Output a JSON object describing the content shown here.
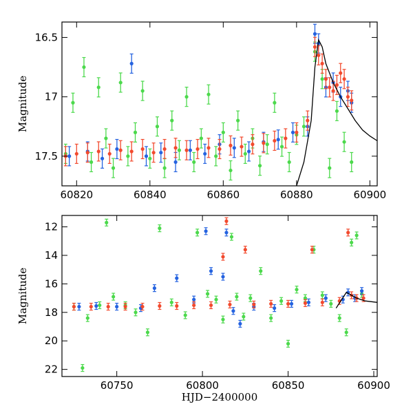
{
  "chart_data": [
    {
      "type": "scatter",
      "panel": "top",
      "title": "",
      "xlabel": "",
      "ylabel": "Magnitude",
      "xlim": [
        60816,
        60902
      ],
      "ylim": [
        17.75,
        16.37
      ],
      "y_inverted": true,
      "x_ticks": [
        60820,
        60840,
        60860,
        60880,
        60900
      ],
      "x_tick_labels": [
        "60820",
        "60840",
        "60860",
        "60880",
        "60900"
      ],
      "y_ticks": [
        16.5,
        17,
        17.5
      ],
      "y_tick_labels": [
        "16.5",
        "17",
        "17.5"
      ],
      "grid": false,
      "legend": "none",
      "series": [
        {
          "color": "#4cd94c",
          "points": [
            [
              60817,
              17.48
            ],
            [
              60819,
              17.05
            ],
            [
              60822,
              16.75
            ],
            [
              60824,
              17.55
            ],
            [
              60826,
              16.92
            ],
            [
              60828,
              17.35
            ],
            [
              60830,
              17.6
            ],
            [
              60832,
              16.88
            ],
            [
              60834,
              17.5
            ],
            [
              60836,
              17.3
            ],
            [
              60838,
              16.95
            ],
            [
              60840,
              17.52
            ],
            [
              60842,
              17.25
            ],
            [
              60844,
              17.6
            ],
            [
              60846,
              17.2
            ],
            [
              60848,
              17.45
            ],
            [
              60850,
              17.0
            ],
            [
              60852,
              17.55
            ],
            [
              60854,
              17.35
            ],
            [
              60856,
              16.98
            ],
            [
              60858,
              17.5
            ],
            [
              60860,
              17.3
            ],
            [
              60862,
              17.62
            ],
            [
              60864,
              17.2
            ],
            [
              60866,
              17.48
            ],
            [
              60868,
              17.35
            ],
            [
              60870,
              17.58
            ],
            [
              60872,
              17.4
            ],
            [
              60874,
              17.05
            ],
            [
              60876,
              17.42
            ],
            [
              60878,
              17.55
            ],
            [
              60880,
              17.32
            ],
            [
              60882,
              17.25
            ],
            [
              60885,
              16.62
            ],
            [
              60887,
              16.85
            ],
            [
              60889,
              17.6
            ],
            [
              60891,
              17.12
            ],
            [
              60893,
              17.38
            ],
            [
              60895,
              17.55
            ]
          ]
        },
        {
          "color": "#2563e0",
          "points": [
            [
              60818,
              17.5
            ],
            [
              60823,
              17.46
            ],
            [
              60827,
              17.52
            ],
            [
              60831,
              17.44
            ],
            [
              60835,
              16.72
            ],
            [
              60839,
              17.5
            ],
            [
              60843,
              17.47
            ],
            [
              60847,
              17.55
            ],
            [
              60851,
              17.45
            ],
            [
              60855,
              17.48
            ],
            [
              60859,
              17.4
            ],
            [
              60863,
              17.43
            ],
            [
              60867,
              17.46
            ],
            [
              60871,
              17.38
            ],
            [
              60875,
              17.36
            ],
            [
              60879,
              17.3
            ],
            [
              60883,
              17.25
            ],
            [
              60885,
              16.47
            ],
            [
              60886,
              16.55
            ],
            [
              60888,
              16.92
            ],
            [
              60890,
              16.88
            ],
            [
              60892,
              17.0
            ],
            [
              60894,
              16.95
            ],
            [
              60895,
              17.05
            ]
          ]
        },
        {
          "color": "#f24a2e",
          "points": [
            [
              60817,
              17.5
            ],
            [
              60820,
              17.48
            ],
            [
              60823,
              17.47
            ],
            [
              60826,
              17.46
            ],
            [
              60829,
              17.48
            ],
            [
              60832,
              17.45
            ],
            [
              60835,
              17.46
            ],
            [
              60838,
              17.44
            ],
            [
              60841,
              17.47
            ],
            [
              60844,
              17.44
            ],
            [
              60847,
              17.43
            ],
            [
              60850,
              17.45
            ],
            [
              60853,
              17.44
            ],
            [
              60856,
              17.43
            ],
            [
              60859,
              17.44
            ],
            [
              60862,
              17.41
            ],
            [
              60865,
              17.42
            ],
            [
              60868,
              17.4
            ],
            [
              60871,
              17.39
            ],
            [
              60874,
              17.37
            ],
            [
              60877,
              17.35
            ],
            [
              60880,
              17.3
            ],
            [
              60883,
              17.2
            ],
            [
              60885,
              16.58
            ],
            [
              60886,
              16.65
            ],
            [
              60887,
              16.72
            ],
            [
              60888,
              16.85
            ],
            [
              60889,
              16.92
            ],
            [
              60890,
              16.95
            ],
            [
              60891,
              16.9
            ],
            [
              60892,
              16.8
            ],
            [
              60893,
              16.85
            ],
            [
              60894,
              17.0
            ],
            [
              60895,
              17.03
            ]
          ]
        }
      ],
      "model_curve": {
        "color": "#000000",
        "points": [
          [
            60880,
            17.75
          ],
          [
            60882,
            17.55
          ],
          [
            60884,
            17.2
          ],
          [
            60885,
            16.75
          ],
          [
            60886,
            16.52
          ],
          [
            60887,
            16.58
          ],
          [
            60888,
            16.72
          ],
          [
            60890,
            16.88
          ],
          [
            60892,
            17.0
          ],
          [
            60894,
            17.1
          ],
          [
            60896,
            17.2
          ],
          [
            60898,
            17.28
          ],
          [
            60900,
            17.33
          ],
          [
            60902,
            17.37
          ]
        ]
      }
    },
    {
      "type": "scatter",
      "panel": "bottom",
      "title": "",
      "xlabel": "HJD−2400000",
      "ylabel": "Magnitude",
      "xlim": [
        60718,
        60902
      ],
      "ylim": [
        22.5,
        11.2
      ],
      "y_inverted": true,
      "x_ticks": [
        60750,
        60800,
        60850,
        60900
      ],
      "x_tick_labels": [
        "60750",
        "60800",
        "60850",
        "60900"
      ],
      "y_ticks": [
        12,
        14,
        16,
        18,
        20,
        22
      ],
      "y_tick_labels": [
        "12",
        "14",
        "16",
        "18",
        "20",
        "22"
      ],
      "grid": false,
      "legend": "none",
      "series": [
        {
          "color": "#4cd94c",
          "points": [
            [
              60725,
              17.6
            ],
            [
              60730,
              21.9
            ],
            [
              60733,
              18.4
            ],
            [
              60740,
              17.5
            ],
            [
              60744,
              11.7
            ],
            [
              60748,
              16.9
            ],
            [
              60755,
              17.5
            ],
            [
              60761,
              18.0
            ],
            [
              60768,
              19.4
            ],
            [
              60775,
              12.1
            ],
            [
              60782,
              17.3
            ],
            [
              60790,
              18.2
            ],
            [
              60797,
              12.4
            ],
            [
              60803,
              16.7
            ],
            [
              60808,
              17.1
            ],
            [
              60812,
              18.5
            ],
            [
              60817,
              12.7
            ],
            [
              60820,
              16.9
            ],
            [
              60824,
              18.3
            ],
            [
              60828,
              17.0
            ],
            [
              60834,
              15.1
            ],
            [
              60840,
              18.4
            ],
            [
              60846,
              17.2
            ],
            [
              60850,
              20.2
            ],
            [
              60855,
              16.4
            ],
            [
              60860,
              17.0
            ],
            [
              60865,
              13.6
            ],
            [
              60870,
              16.8
            ],
            [
              60875,
              17.4
            ],
            [
              60880,
              18.4
            ],
            [
              60884,
              19.4
            ],
            [
              60887,
              13.1
            ],
            [
              60890,
              12.6
            ],
            [
              60893,
              16.7
            ]
          ]
        },
        {
          "color": "#2563e0",
          "points": [
            [
              60728,
              17.6
            ],
            [
              60738,
              17.55
            ],
            [
              60750,
              17.6
            ],
            [
              60764,
              17.7
            ],
            [
              60772,
              16.3
            ],
            [
              60785,
              15.6
            ],
            [
              60795,
              17.1
            ],
            [
              60802,
              12.3
            ],
            [
              60805,
              15.1
            ],
            [
              60812,
              15.5
            ],
            [
              60814,
              12.4
            ],
            [
              60818,
              17.9
            ],
            [
              60822,
              18.8
            ],
            [
              60830,
              17.6
            ],
            [
              60842,
              17.7
            ],
            [
              60852,
              17.4
            ],
            [
              60862,
              17.3
            ],
            [
              60872,
              17.0
            ],
            [
              60882,
              17.1
            ],
            [
              60885,
              16.6
            ],
            [
              60889,
              17.0
            ],
            [
              60893,
              16.5
            ]
          ]
        },
        {
          "color": "#f24a2e",
          "points": [
            [
              60725,
              17.6
            ],
            [
              60735,
              17.6
            ],
            [
              60745,
              17.6
            ],
            [
              60755,
              17.6
            ],
            [
              60765,
              17.6
            ],
            [
              60775,
              17.55
            ],
            [
              60785,
              17.55
            ],
            [
              60795,
              17.5
            ],
            [
              60805,
              17.5
            ],
            [
              60812,
              14.1
            ],
            [
              60814,
              11.6
            ],
            [
              60816,
              17.45
            ],
            [
              60825,
              13.6
            ],
            [
              60830,
              17.45
            ],
            [
              60840,
              17.4
            ],
            [
              60850,
              17.4
            ],
            [
              60860,
              17.35
            ],
            [
              60864,
              13.6
            ],
            [
              60870,
              17.3
            ],
            [
              60880,
              17.2
            ],
            [
              60885,
              12.4
            ],
            [
              60887,
              16.8
            ],
            [
              60890,
              17.0
            ],
            [
              60894,
              17.0
            ]
          ]
        }
      ],
      "model_curve": {
        "color": "#000000",
        "points": [
          [
            60878,
            17.7
          ],
          [
            60884,
            16.6
          ],
          [
            60887,
            16.8
          ],
          [
            60890,
            17.0
          ],
          [
            60895,
            17.2
          ],
          [
            60902,
            17.3
          ]
        ]
      }
    }
  ]
}
